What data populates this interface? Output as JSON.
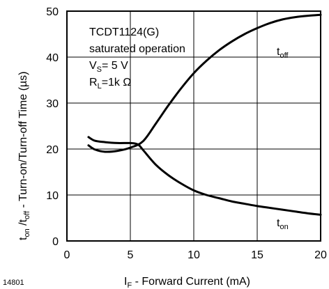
{
  "figure_id": "14801",
  "annotation": {
    "part": "TCDT1124(G)",
    "mode": "saturated operation",
    "vs_main": "V",
    "vs_sub": "S",
    "vs_value": "= 5 V",
    "rl_main": "R",
    "rl_sub": "L",
    "rl_value": "=1k Ω"
  },
  "chart_data": {
    "type": "line",
    "xlabel": {
      "main": "I",
      "sub": "F",
      "rest": " -  Forward Current (mA)"
    },
    "ylabel": {
      "t1": "t",
      "s1": "on",
      "slash": " /t",
      "s2": "off",
      "rest": "  - Turn-on/Turn-off Time (µs)"
    },
    "xlim": [
      0,
      20
    ],
    "ylim": [
      0,
      50
    ],
    "xticks": [
      "0",
      "5",
      "10",
      "15",
      "20"
    ],
    "yticks": [
      "0",
      "10",
      "20",
      "30",
      "40",
      "50"
    ],
    "grid": true,
    "series": [
      {
        "name": "t_off",
        "label_main": "t",
        "label_sub": "off",
        "x": [
          1.7,
          2.2,
          3,
          4,
          5,
          6,
          7,
          8,
          9,
          10,
          11,
          12,
          13,
          14,
          15,
          16,
          17,
          18,
          19,
          20
        ],
        "y": [
          20.8,
          19.9,
          19.4,
          19.6,
          20.3,
          21.7,
          25.5,
          29.5,
          33.2,
          36.5,
          39.2,
          41.5,
          43.4,
          45.0,
          46.3,
          47.4,
          48.2,
          48.7,
          49.0,
          49.2
        ]
      },
      {
        "name": "t_on",
        "label_main": "t",
        "label_sub": "on",
        "x": [
          1.7,
          2.2,
          3,
          4,
          5,
          5.6,
          6,
          7,
          8,
          9,
          10,
          11,
          12,
          13,
          14,
          15,
          16,
          17,
          18,
          19,
          20
        ],
        "y": [
          22.6,
          21.8,
          21.5,
          21.3,
          21.3,
          21.0,
          19.8,
          16.6,
          14.3,
          12.5,
          11.0,
          10.0,
          9.3,
          8.6,
          8.1,
          7.6,
          7.2,
          6.8,
          6.4,
          6.0,
          5.7
        ]
      }
    ]
  }
}
